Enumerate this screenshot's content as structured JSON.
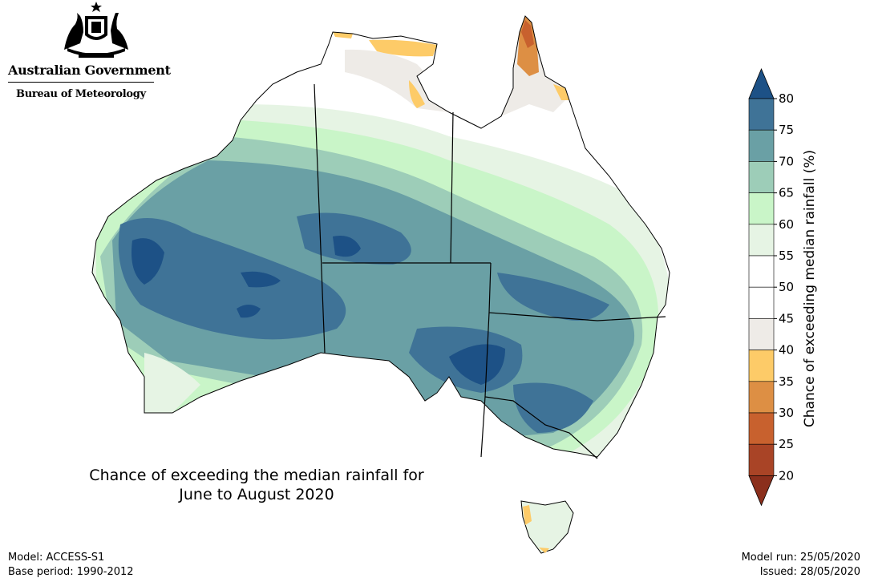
{
  "branding": {
    "government": "Australian Government",
    "bureau": "Bureau of Meteorology",
    "crest_icon": "australian-coat-of-arms-icon"
  },
  "map": {
    "title_line1": "Chance of exceeding the median rainfall for",
    "title_line2": "June to August 2020"
  },
  "legend": {
    "title": "Chance of exceeding median rainfall (%)",
    "ticks": [
      "80",
      "75",
      "70",
      "65",
      "60",
      "55",
      "50",
      "45",
      "40",
      "35",
      "30",
      "25",
      "20"
    ],
    "bins": [
      {
        "range": "75-80",
        "color": "#3f7397"
      },
      {
        "range": "70-75",
        "color": "#6aa0a5"
      },
      {
        "range": "65-70",
        "color": "#9dcdb8"
      },
      {
        "range": "60-65",
        "color": "#c9f5c8"
      },
      {
        "range": "55-60",
        "color": "#e6f4e4"
      },
      {
        "range": "50-55",
        "color": "#ffffff"
      },
      {
        "range": "45-50",
        "color": "#ffffff"
      },
      {
        "range": "40-45",
        "color": "#eeebe7"
      },
      {
        "range": "35-40",
        "color": "#fdcb68"
      },
      {
        "range": "30-35",
        "color": "#dd8f44"
      },
      {
        "range": "25-30",
        "color": "#c8612e"
      },
      {
        "range": "20-25",
        "color": "#a94426"
      }
    ],
    "over_color": "#1d5186",
    "under_color": "#8b2f1c"
  },
  "info": {
    "model": "Model: ACCESS-S1",
    "base_period": "Base period: 1990-2012",
    "model_run": "Model run: 25/05/2020",
    "issued": "Issued: 28/05/2020"
  }
}
